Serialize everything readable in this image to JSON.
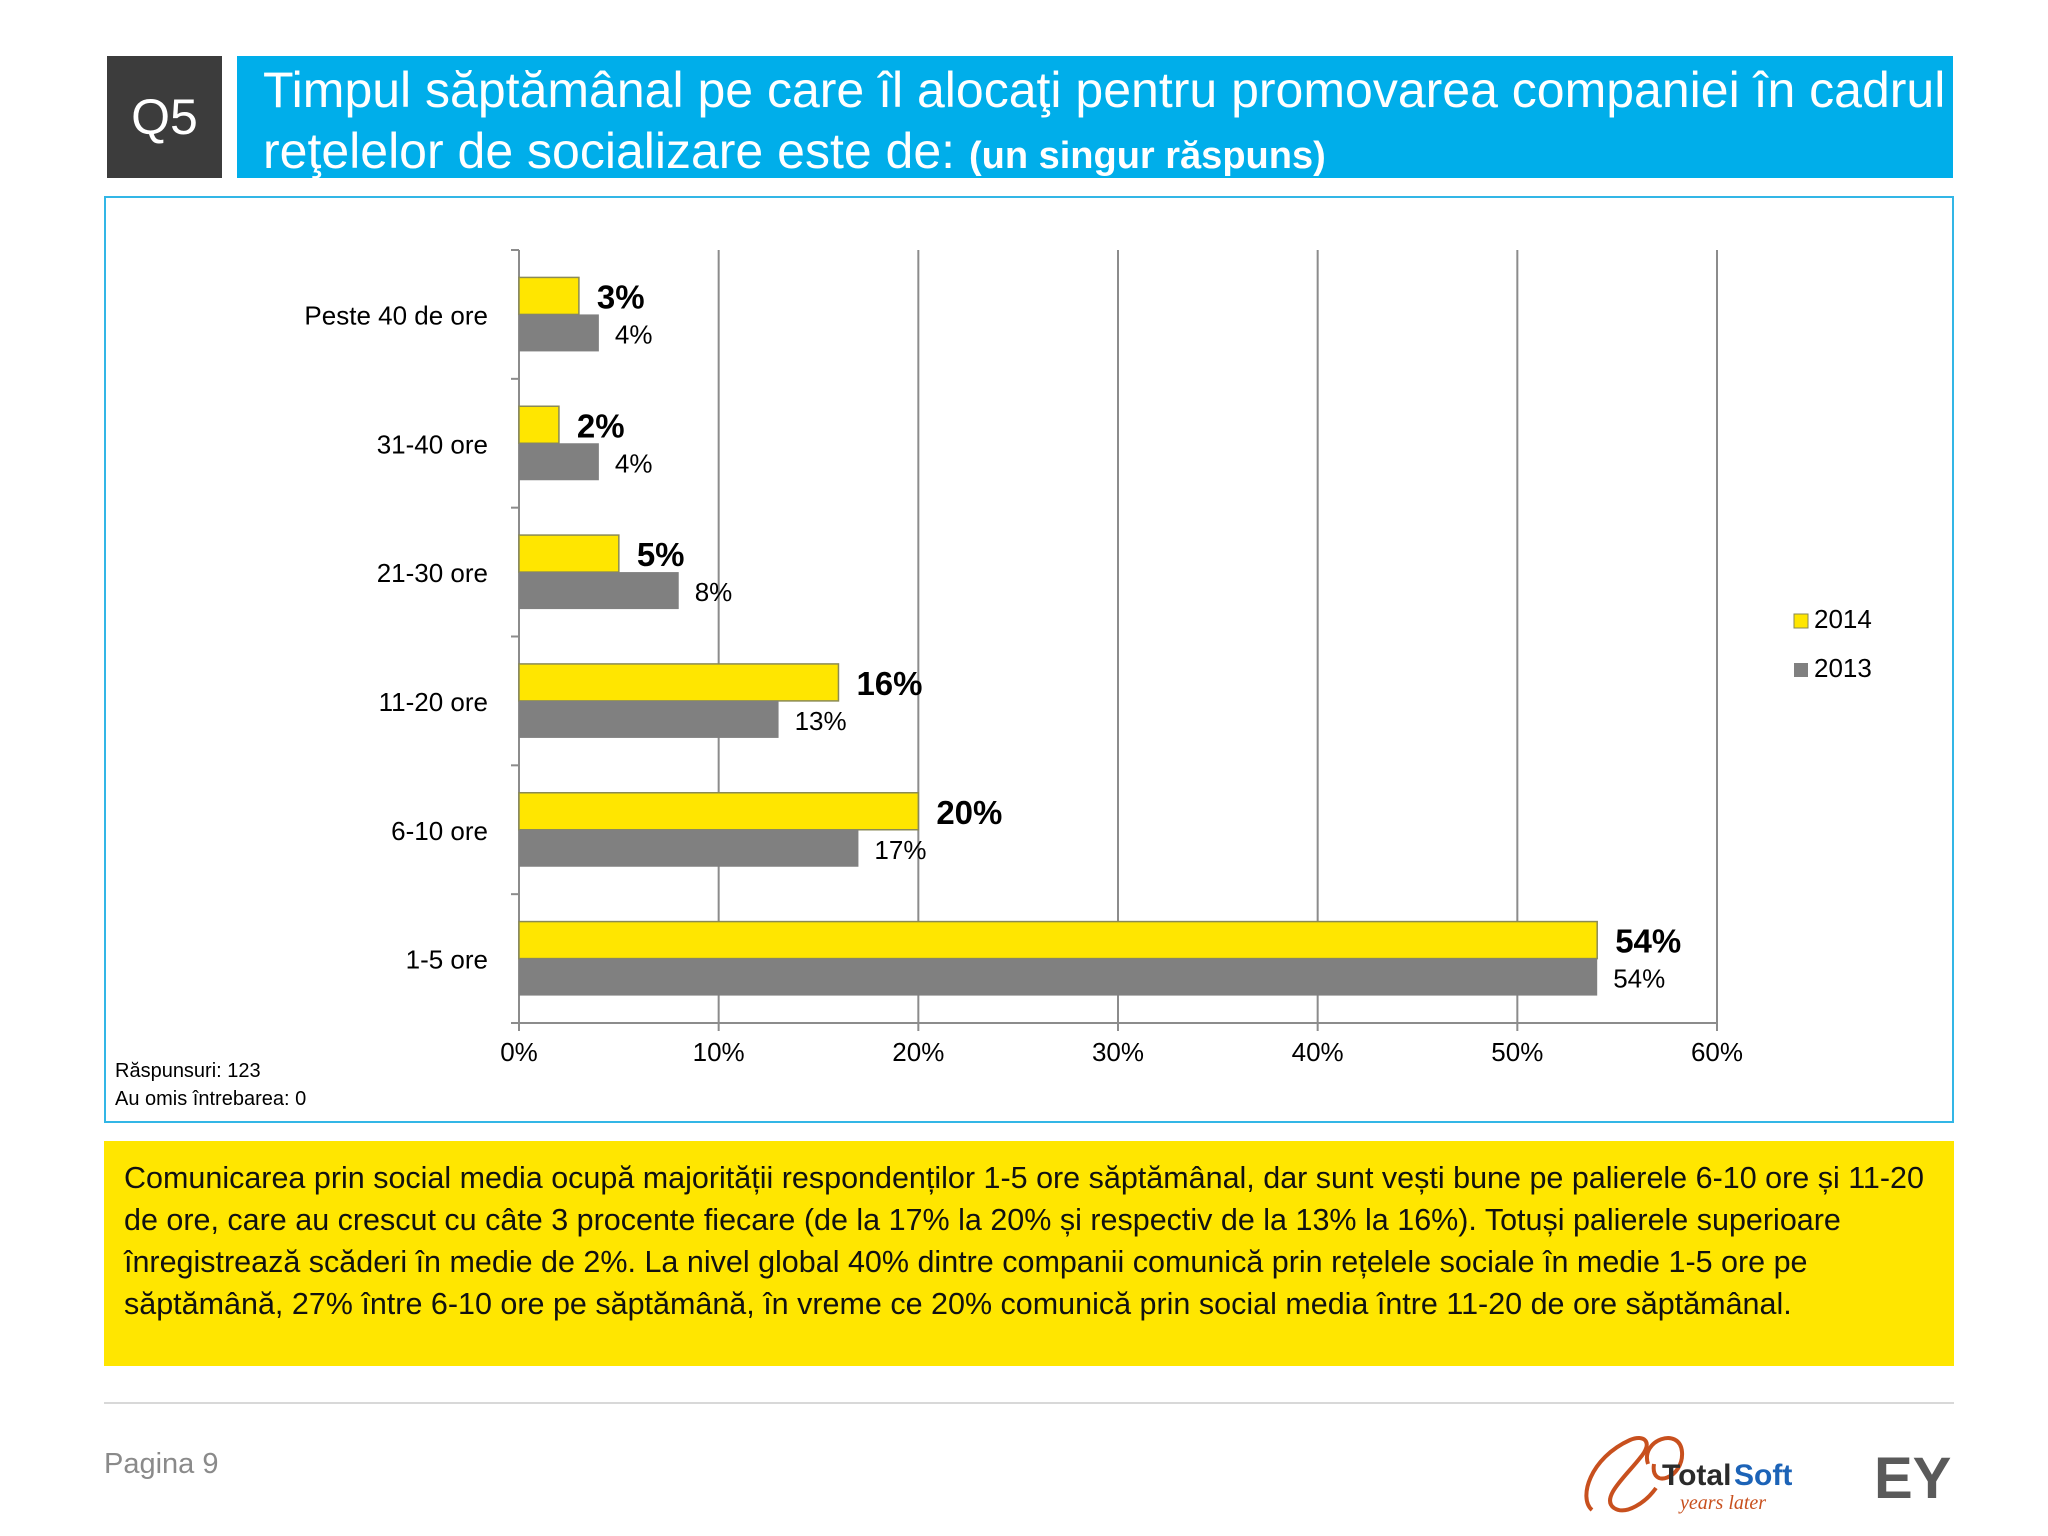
{
  "header": {
    "question_code": "Q5",
    "title": "Timpul săptămânal pe care îl alocaţi pentru promovarea companiei în cadrul reţelelor de socializare este de:",
    "subtitle": "(un singur răspuns)"
  },
  "chart_data": {
    "type": "bar",
    "orientation": "horizontal",
    "categories": [
      "Peste 40 de ore",
      "31-40 ore",
      "21-30 ore",
      "11-20 ore",
      "6-10 ore",
      "1-5 ore"
    ],
    "series": [
      {
        "name": "2014",
        "values": [
          3,
          2,
          5,
          16,
          20,
          54
        ],
        "labels": [
          "3%",
          "2%",
          "5%",
          "16%",
          "20%",
          "54%"
        ],
        "color": "#ffe600"
      },
      {
        "name": "2013",
        "values": [
          4,
          4,
          8,
          13,
          17,
          54
        ],
        "labels": [
          "4%",
          "4%",
          "8%",
          "13%",
          "17%",
          "54%"
        ],
        "color": "#808080"
      }
    ],
    "xlim": [
      0,
      60
    ],
    "x_ticks": [
      "0%",
      "10%",
      "20%",
      "30%",
      "40%",
      "50%",
      "60%"
    ],
    "grid": true,
    "legend_position": "right"
  },
  "meta": {
    "responses": "Răspunsuri: 123",
    "skipped": "Au omis întrebarea: 0"
  },
  "summary": "Comunicarea prin social media ocupă majorității respondenților 1-5 ore săptămânal, dar sunt vești bune pe palierele 6-10 ore și 11-20 de ore, care au crescut cu câte 3 procente fiecare (de la 17% la 20% și respectiv de la 13% la 16%). Totuși palierele superioare înregistrează scăderi în medie de 2%. La nivel global 40% dintre companii comunică prin rețelele sociale în medie 1-5 ore pe săptămână, 27% între 6-10 ore pe săptămână, în vreme ce 20% comunică prin social media între 11-20 de ore săptămânal.",
  "footer": {
    "page_label": "Pagina 9",
    "logo_totalsoft": {
      "text_a": "Total",
      "text_b": "Soft",
      "tagline": "years later"
    },
    "logo_ey": "EY"
  },
  "colors": {
    "accent_blue": "#00aeea",
    "highlight_yellow": "#ffe600",
    "dark_gray": "#3c3c3c"
  }
}
